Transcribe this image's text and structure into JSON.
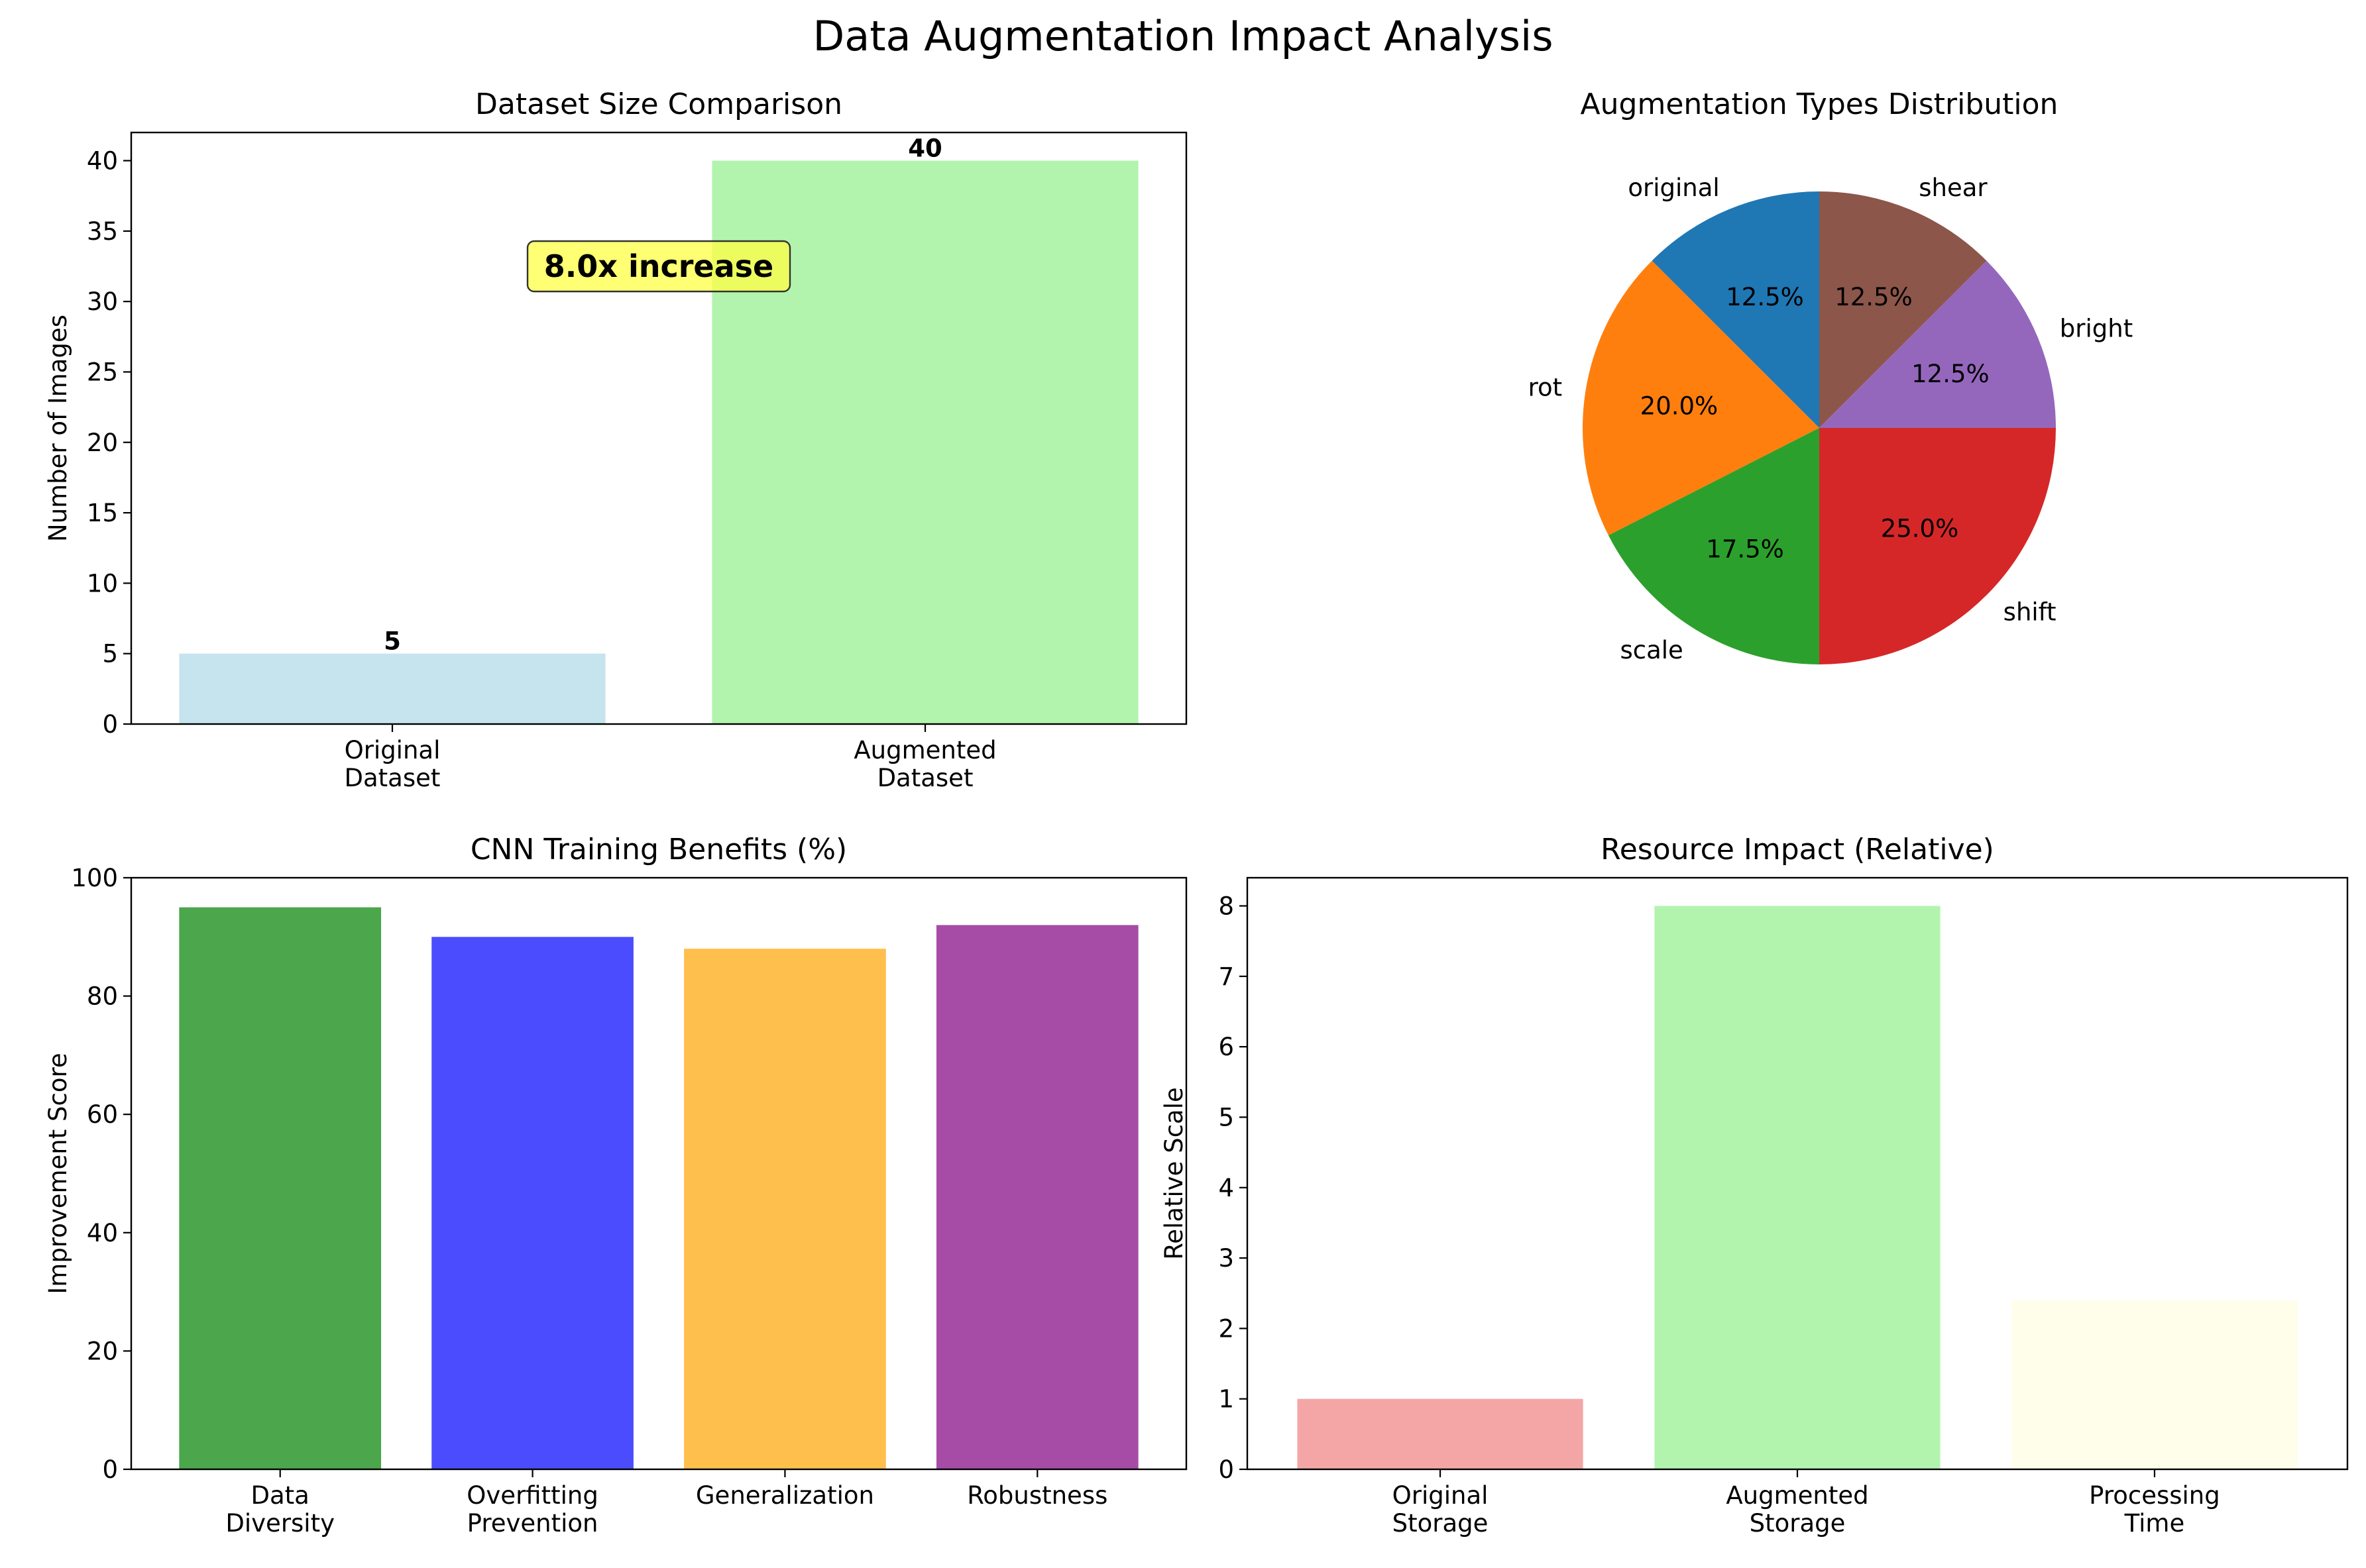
{
  "figure": {
    "suptitle": "Data Augmentation Impact Analysis"
  },
  "chart_data": [
    {
      "type": "bar",
      "title": "Dataset Size Comparison",
      "xlabel": "",
      "ylabel": "Number of Images",
      "categories": [
        "Original\nDataset",
        "Augmented\nDataset"
      ],
      "values": [
        5,
        40
      ],
      "data_labels": [
        "5",
        "40"
      ],
      "colors": [
        "#c6e4ee",
        "#b2f4ae"
      ],
      "ylim": [
        0,
        42
      ],
      "yticks": [
        0,
        5,
        10,
        15,
        20,
        25,
        30,
        35,
        40
      ],
      "annotation": {
        "text": "8.0x increase",
        "x": 0.5,
        "y": 32.5,
        "box_color": "#ffff44"
      },
      "grid": false
    },
    {
      "type": "pie",
      "title": "Augmentation Types Distribution",
      "labels": [
        "original",
        "rot",
        "scale",
        "shift",
        "bright",
        "shear"
      ],
      "values": [
        12.5,
        20.0,
        17.5,
        25.0,
        12.5,
        12.5
      ],
      "pct_labels": [
        "12.5%",
        "20.0%",
        "17.5%",
        "25.0%",
        "12.5%",
        "12.5%"
      ],
      "colors": [
        "#1f77b4",
        "#ff7f0e",
        "#2ca02c",
        "#d62728",
        "#9467bd",
        "#8c564b"
      ],
      "start_angle_deg": 90,
      "direction": "counterclockwise"
    },
    {
      "type": "bar",
      "title": "CNN Training Benefits (%)",
      "xlabel": "",
      "ylabel": "Improvement Score",
      "categories": [
        "Data\nDiversity",
        "Overfitting\nPrevention",
        "Generalization",
        "Robustness"
      ],
      "values": [
        95,
        90,
        88,
        92
      ],
      "colors": [
        "#4ca64c",
        "#4c4cff",
        "#ffbf4d",
        "#a64ca6"
      ],
      "ylim": [
        0,
        100
      ],
      "yticks": [
        0,
        20,
        40,
        60,
        80,
        100
      ],
      "grid": false
    },
    {
      "type": "bar",
      "title": "Resource Impact (Relative)",
      "xlabel": "",
      "ylabel": "Relative Scale",
      "categories": [
        "Original\nStorage",
        "Augmented\nStorage",
        "Processing\nTime"
      ],
      "values": [
        1,
        8,
        2.4
      ],
      "colors": [
        "#f4a6a6",
        "#b2f4ae",
        "#fffeea"
      ],
      "ylim": [
        0,
        8.4
      ],
      "yticks": [
        0,
        1,
        2,
        3,
        4,
        5,
        6,
        7,
        8
      ],
      "grid": false
    }
  ]
}
